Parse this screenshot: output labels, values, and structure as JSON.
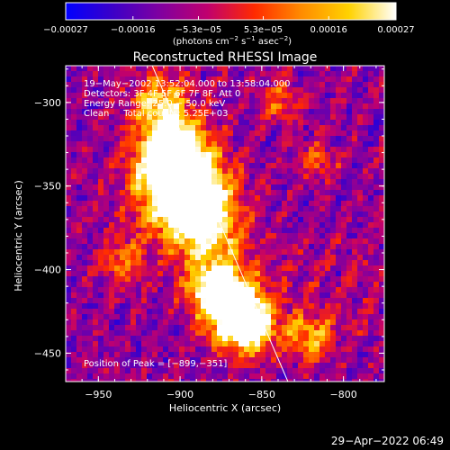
{
  "chart_data": {
    "type": "heatmap",
    "title": "Reconstructed RHESSI Image",
    "xlabel": "Heliocentric X (arcsec)",
    "ylabel": "Heliocentric Y (arcsec)",
    "xlim": [
      -970,
      -775
    ],
    "ylim": [
      -467,
      -278
    ],
    "x_ticks": [
      {
        "value": -950,
        "label": "−950"
      },
      {
        "value": -900,
        "label": "−900"
      },
      {
        "value": -850,
        "label": "−850"
      },
      {
        "value": -800,
        "label": "−800"
      }
    ],
    "y_ticks": [
      {
        "value": -300,
        "label": "−300"
      },
      {
        "value": -350,
        "label": "−350"
      },
      {
        "value": -400,
        "label": "−400"
      },
      {
        "value": -450,
        "label": "−450"
      }
    ],
    "colorbar": {
      "range": [
        -0.00027,
        0.00027
      ],
      "ticks": [
        {
          "value": -0.00027,
          "label": "−0.00027"
        },
        {
          "value": -0.00016,
          "label": "−0.00016"
        },
        {
          "value": -5.3e-05,
          "label": "−5.3e−05"
        },
        {
          "value": 5.3e-05,
          "label": "5.3e−05"
        },
        {
          "value": 0.00016,
          "label": "0.00016"
        },
        {
          "value": 0.00027,
          "label": "0.00027"
        }
      ],
      "unit_label": "(photons cm",
      "unit_exp1": "−2",
      "unit_mid": " s",
      "unit_exp2": "−1",
      "unit_mid2": " asec",
      "unit_exp3": "−2",
      "unit_end": ")"
    },
    "annotations": [
      "19−May−2002 13:52:04.000 to 13:58:04.000",
      "Detectors: 3F 4F 5F 6F 7F 8F, Att 0",
      "Energy Range: 25.0 − 50.0 keV",
      "Clean     Total counts: 5.25E+03"
    ],
    "peak_label": "Position of Peak = [−899,−351]",
    "peak": [
      -899,
      -351
    ],
    "limb_line": [
      [
        -917,
        -278
      ],
      [
        -834,
        -467
      ]
    ],
    "colors": {
      "background": "#000000",
      "text": "#ffffff",
      "colormap": [
        "#0000ff",
        "#3c00c8",
        "#8000a0",
        "#c0006e",
        "#ff2a00",
        "#ff8c00",
        "#ffd200",
        "#ffffff"
      ]
    }
  },
  "timestamp": "29−Apr−2022 06:49"
}
